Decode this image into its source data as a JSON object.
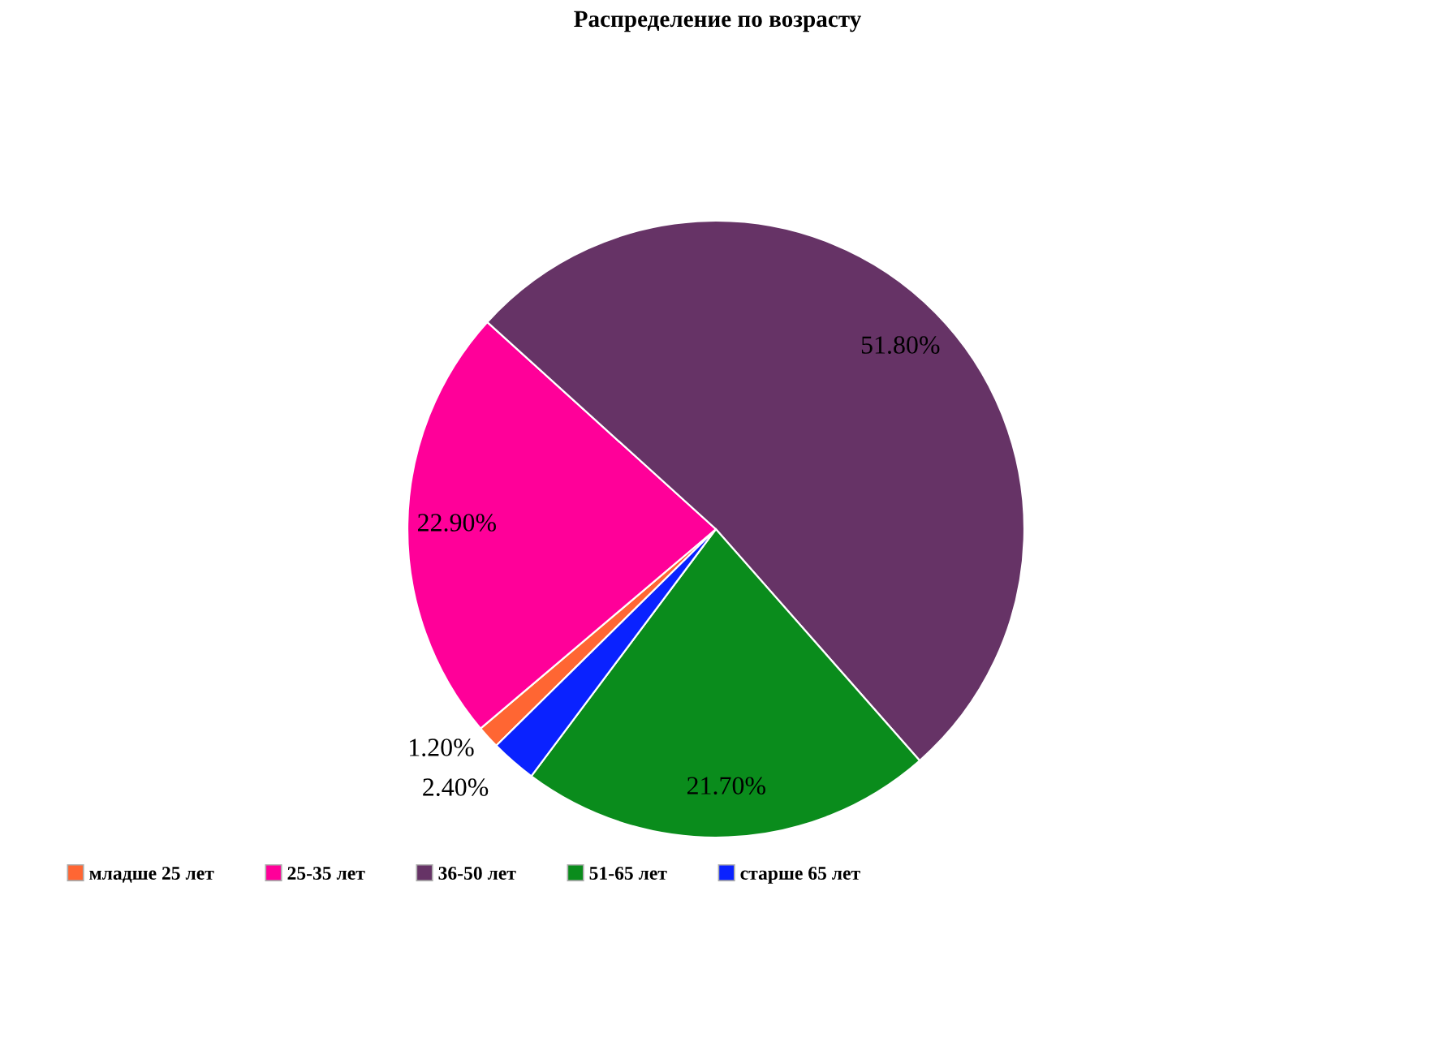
{
  "chart_data": {
    "type": "pie",
    "title": "Распределение по возрасту",
    "categories": [
      "младше 25 лет",
      "25-35 лет",
      "36-50 лет",
      "51-65 лет",
      "старше 65 лет"
    ],
    "values": [
      1.2,
      22.9,
      51.8,
      21.7,
      2.4
    ],
    "colors": [
      "#ff6633",
      "#ff0099",
      "#663366",
      "#0a8c1c",
      "#0a22ff"
    ],
    "value_labels": [
      "1.20%",
      "22.90%",
      "51.80%",
      "21.70%",
      "2.40%"
    ],
    "legend": "bottom left"
  }
}
